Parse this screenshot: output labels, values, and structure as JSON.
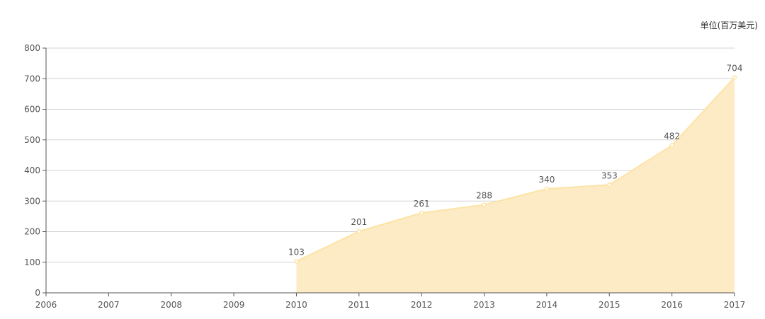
{
  "chart_data": {
    "type": "area",
    "unit_label": "单位(百万美元)",
    "x": [
      2006,
      2007,
      2008,
      2009,
      2010,
      2011,
      2012,
      2013,
      2014,
      2015,
      2016,
      2017
    ],
    "xlim": [
      2006,
      2017
    ],
    "ylim": [
      0,
      800
    ],
    "y_ticks": [
      0,
      100,
      200,
      300,
      400,
      500,
      600,
      700,
      800
    ],
    "grid": true,
    "legend": "none",
    "series": [
      {
        "points": [
          {
            "x": 2010,
            "y": 103
          },
          {
            "x": 2011,
            "y": 201
          },
          {
            "x": 2012,
            "y": 261
          },
          {
            "x": 2013,
            "y": 288
          },
          {
            "x": 2014,
            "y": 340
          },
          {
            "x": 2015,
            "y": 353
          },
          {
            "x": 2016,
            "y": 482
          },
          {
            "x": 2017,
            "y": 704
          }
        ]
      }
    ],
    "colors": {
      "line": "#fde3a5",
      "area": "#fdebc6",
      "grid": "#d3d3d3",
      "axis": "#555555",
      "text": "#555555"
    }
  }
}
